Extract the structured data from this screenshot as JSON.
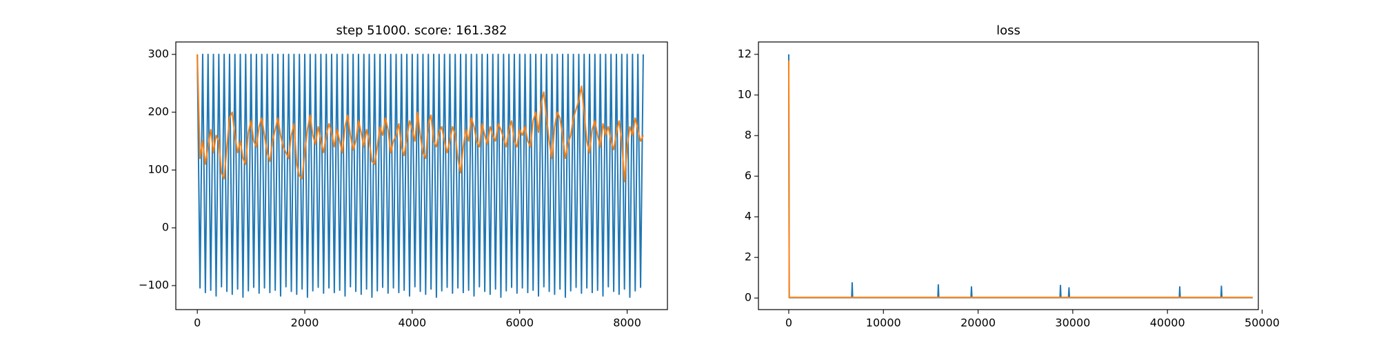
{
  "chart_data": [
    {
      "type": "line",
      "title": "step 51000. score: 161.382",
      "x": [
        0,
        50,
        100,
        150,
        200,
        250,
        300,
        350,
        400,
        450,
        500,
        550,
        600,
        650,
        700,
        750,
        800,
        850,
        900,
        950,
        1000,
        1050,
        1100,
        1150,
        1200,
        1250,
        1300,
        1350,
        1400,
        1450,
        1500,
        1550,
        1600,
        1650,
        1700,
        1750,
        1800,
        1850,
        1900,
        1950,
        2000,
        2050,
        2100,
        2150,
        2200,
        2250,
        2300,
        2350,
        2400,
        2450,
        2500,
        2550,
        2600,
        2650,
        2700,
        2750,
        2800,
        2850,
        2900,
        2950,
        3000,
        3050,
        3100,
        3150,
        3200,
        3250,
        3300,
        3350,
        3400,
        3450,
        3500,
        3550,
        3600,
        3650,
        3700,
        3750,
        3800,
        3850,
        3900,
        3950,
        4000,
        4050,
        4100,
        4150,
        4200,
        4250,
        4300,
        4350,
        4400,
        4450,
        4500,
        4550,
        4600,
        4650,
        4700,
        4750,
        4800,
        4850,
        4900,
        4950,
        5000,
        5050,
        5100,
        5150,
        5200,
        5250,
        5300,
        5350,
        5400,
        5450,
        5500,
        5550,
        5600,
        5650,
        5700,
        5750,
        5800,
        5850,
        5900,
        5950,
        6000,
        6050,
        6100,
        6150,
        6200,
        6250,
        6300,
        6350,
        6400,
        6450,
        6500,
        6550,
        6600,
        6650,
        6700,
        6750,
        6800,
        6850,
        6900,
        6950,
        7000,
        7050,
        7100,
        7150,
        7200,
        7250,
        7300,
        7350,
        7400,
        7450,
        7500,
        7550,
        7600,
        7650,
        7700,
        7750,
        7800,
        7850,
        7900,
        7950,
        8000,
        8050,
        8100,
        8150,
        8200,
        8250,
        8300
      ],
      "series": [
        {
          "name": "blue",
          "color": "#1f77b4",
          "values": [
            300,
            -104,
            300,
            -112,
            300,
            -108,
            300,
            -118,
            300,
            -102,
            300,
            -110,
            300,
            -115,
            300,
            -106,
            300,
            -120,
            300,
            -109,
            300,
            -103,
            300,
            -113,
            300,
            -104,
            300,
            -112,
            300,
            -108,
            300,
            -118,
            300,
            -102,
            300,
            -110,
            300,
            -115,
            300,
            -106,
            300,
            -120,
            300,
            -109,
            300,
            -103,
            300,
            -113,
            300,
            -104,
            300,
            -112,
            300,
            -108,
            300,
            -118,
            300,
            -102,
            300,
            -110,
            300,
            -115,
            300,
            -106,
            300,
            -120,
            300,
            -109,
            300,
            -103,
            300,
            -113,
            300,
            -104,
            300,
            -112,
            300,
            -108,
            300,
            -118,
            300,
            -102,
            300,
            -110,
            300,
            -115,
            300,
            -106,
            300,
            -120,
            300,
            -109,
            300,
            -103,
            300,
            -113,
            300,
            -104,
            300,
            -112,
            300,
            -108,
            300,
            -118,
            300,
            -102,
            300,
            -110,
            300,
            -115,
            300,
            -106,
            300,
            -120,
            300,
            -109,
            300,
            -103,
            300,
            -113,
            300,
            -104,
            300,
            -112,
            300,
            -108,
            300,
            -118,
            300,
            -102,
            300,
            -110,
            300,
            -115,
            300,
            -106,
            300,
            -120,
            300,
            -109,
            300,
            -103,
            300,
            -113,
            300,
            -104,
            300,
            -112,
            300,
            -108,
            300,
            -118,
            300,
            -102,
            300,
            -110,
            300,
            -115,
            300,
            -106,
            300,
            -120,
            300,
            -109,
            300,
            -103,
            300
          ]
        },
        {
          "name": "orange",
          "color": "#ff7f0e",
          "values": [
            300,
            120,
            150,
            110,
            140,
            170,
            130,
            160,
            150,
            95,
            85,
            140,
            190,
            200,
            160,
            130,
            150,
            120,
            110,
            165,
            185,
            150,
            140,
            175,
            190,
            160,
            130,
            115,
            150,
            170,
            190,
            160,
            140,
            130,
            120,
            160,
            180,
            110,
            90,
            85,
            130,
            170,
            195,
            160,
            145,
            175,
            150,
            130,
            160,
            180,
            165,
            140,
            170,
            150,
            130,
            175,
            195,
            160,
            135,
            150,
            185,
            165,
            140,
            170,
            150,
            115,
            110,
            140,
            175,
            160,
            190,
            170,
            130,
            150,
            160,
            180,
            140,
            125,
            155,
            185,
            170,
            150,
            200,
            160,
            130,
            120,
            180,
            195,
            150,
            140,
            165,
            175,
            150,
            130,
            150,
            175,
            160,
            120,
            95,
            140,
            170,
            150,
            190,
            175,
            150,
            140,
            180,
            160,
            145,
            175,
            160,
            150,
            180,
            170,
            155,
            140,
            170,
            185,
            150,
            140,
            170,
            160,
            175,
            150,
            140,
            185,
            200,
            165,
            215,
            235,
            190,
            150,
            120,
            175,
            200,
            190,
            160,
            120,
            145,
            160,
            190,
            205,
            220,
            245,
            200,
            150,
            130,
            170,
            185,
            160,
            140,
            180,
            160,
            175,
            150,
            135,
            165,
            185,
            150,
            80,
            140,
            175,
            160,
            190,
            170,
            150,
            160
          ]
        }
      ],
      "xlim": [
        -400,
        8750
      ],
      "ylim": [
        -141.5,
        321.5
      ],
      "xticks": [
        0,
        2000,
        4000,
        6000,
        8000
      ],
      "yticks": [
        {
          "value": -100,
          "label": "−100"
        },
        0,
        100,
        200,
        300
      ]
    },
    {
      "type": "line",
      "title": "loss",
      "x": [
        0,
        50,
        100,
        6650,
        6700,
        6750,
        15750,
        15800,
        15850,
        19250,
        19300,
        19350,
        28650,
        28700,
        28750,
        29550,
        29600,
        29650,
        41250,
        41300,
        41350,
        45650,
        45700,
        45750,
        49000
      ],
      "series": [
        {
          "name": "blue",
          "color": "#1f77b4",
          "values": [
            12,
            0.02,
            0.02,
            0.02,
            0.75,
            0.02,
            0.02,
            0.65,
            0.02,
            0.02,
            0.55,
            0.02,
            0.02,
            0.62,
            0.02,
            0.02,
            0.5,
            0.02,
            0.02,
            0.55,
            0.02,
            0.02,
            0.58,
            0.02,
            0.02
          ]
        },
        {
          "name": "orange",
          "color": "#ff7f0e",
          "values": [
            11.7,
            0.03,
            0.03,
            0.03,
            0.03,
            0.03,
            0.03,
            0.03,
            0.03,
            0.03,
            0.03,
            0.03,
            0.03,
            0.03,
            0.03,
            0.03,
            0.03,
            0.03,
            0.03,
            0.03,
            0.03,
            0.03,
            0.03,
            0.03,
            0.03
          ]
        }
      ],
      "xlim": [
        -3200,
        49600
      ],
      "ylim": [
        -0.57,
        12.61
      ],
      "xticks": [
        0,
        10000,
        20000,
        30000,
        40000,
        50000
      ],
      "yticks": [
        0,
        2,
        4,
        6,
        8,
        10,
        12
      ]
    }
  ]
}
